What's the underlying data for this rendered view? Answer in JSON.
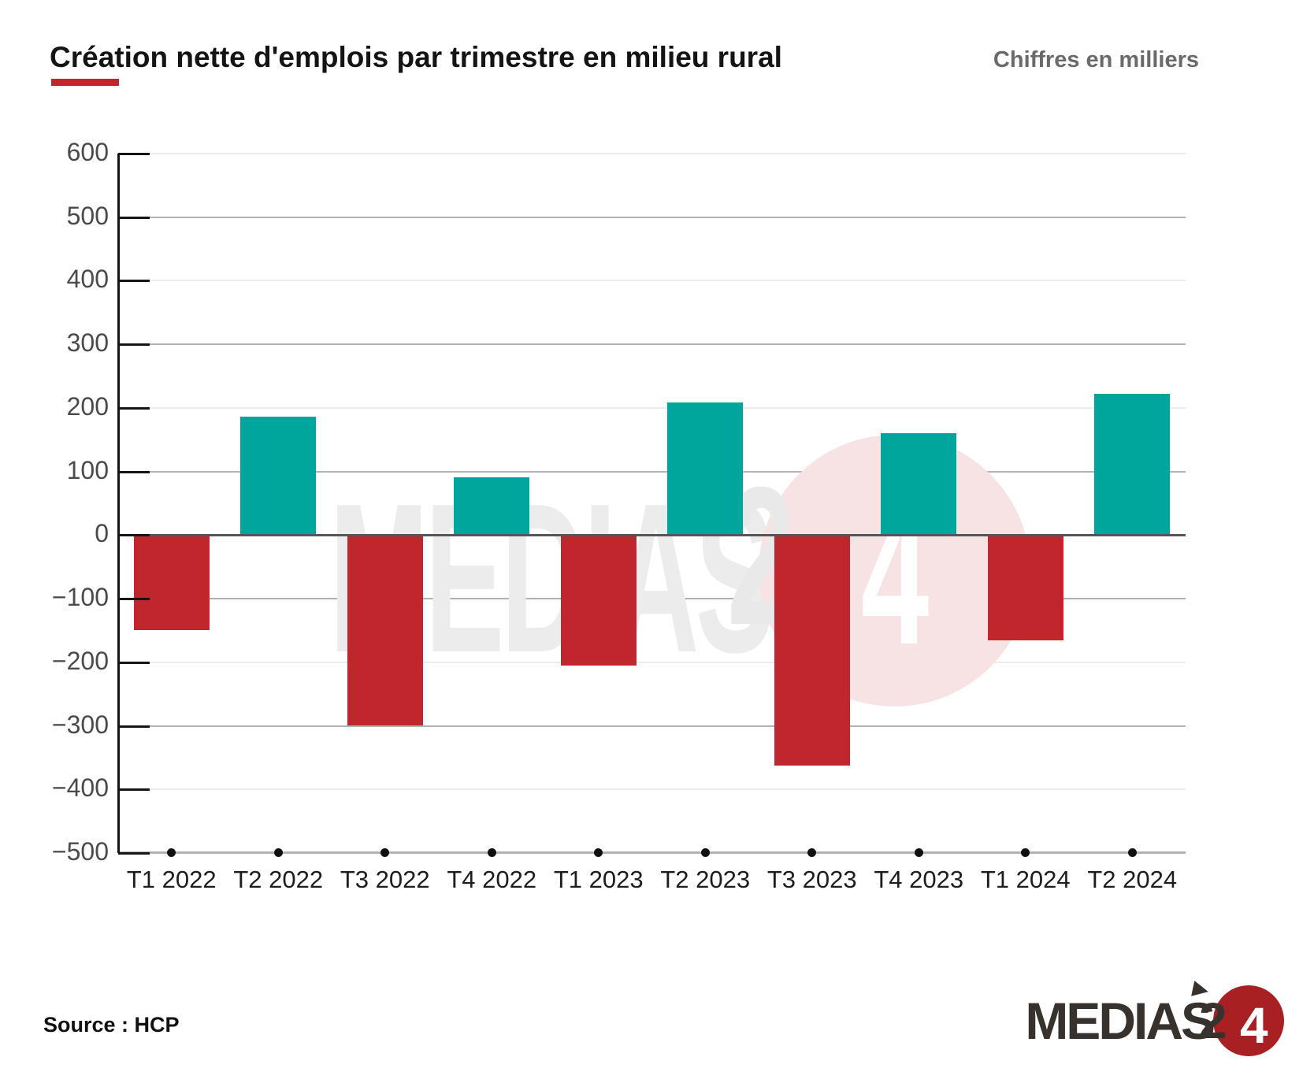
{
  "header": {
    "title": "Création nette d'emplois par trimestre en milieu rural",
    "units_note": "Chiffres en milliers"
  },
  "chart_data": {
    "type": "bar",
    "title": "Création nette d'emplois par trimestre en milieu rural",
    "subtitle": "Chiffres en milliers",
    "unit": "milliers",
    "categories": [
      "T1 2022",
      "T2 2022",
      "T3 2022",
      "T4 2022",
      "T1 2023",
      "T2 2023",
      "T3 2023",
      "T4 2023",
      "T1 2024",
      "T2 2024"
    ],
    "values": [
      -150,
      186,
      -299,
      91,
      -205,
      208,
      -362,
      160,
      -166,
      222
    ],
    "xlabel": "",
    "ylabel": "",
    "ylim": [
      -500,
      600
    ],
    "y_ticks": [
      600,
      500,
      400,
      300,
      200,
      100,
      0,
      -100,
      -200,
      -300,
      -400,
      -500
    ],
    "grid": true,
    "legend_position": "none",
    "positive_color": "#00a69c",
    "negative_color": "#c0272d",
    "zero_line_color": "#55565a"
  },
  "watermark": {
    "text_part": "MEDIAS",
    "digit2": "2",
    "digit4": "4"
  },
  "footer": {
    "source": "Source : HCP",
    "logo": {
      "name": "MEDIAS",
      "digit2": "2",
      "digit4": "4"
    }
  },
  "colors": {
    "accent_red": "#c0272d",
    "teal": "#00a69c",
    "subtitle_gray": "#6a6a6a"
  }
}
